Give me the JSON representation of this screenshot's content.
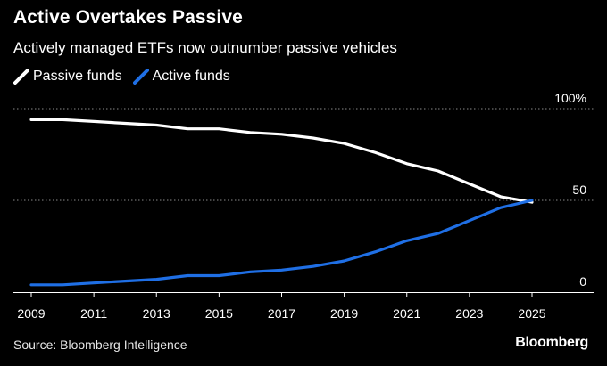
{
  "chart_data": {
    "type": "line",
    "title": "Active Overtakes Passive",
    "subtitle": "Actively managed ETFs now outnumber passive vehicles",
    "xlabel": "",
    "ylabel": "",
    "x": [
      2009,
      2010,
      2011,
      2012,
      2013,
      2014,
      2015,
      2016,
      2017,
      2018,
      2019,
      2020,
      2021,
      2022,
      2023,
      2024,
      2025
    ],
    "xlim": [
      2009,
      2025.8
    ],
    "xticks": [
      "2009",
      "2011",
      "2013",
      "2015",
      "2017",
      "2019",
      "2021",
      "2023",
      "2025"
    ],
    "ylim": [
      0,
      100
    ],
    "yticks": [
      "0",
      "50",
      "100%"
    ],
    "grid": "horizontal dotted",
    "legend_position": "top-left",
    "series": [
      {
        "name": "Passive funds",
        "color": "#ffffff",
        "values": [
          94,
          94,
          93,
          92,
          91,
          89,
          89,
          87,
          86,
          84,
          81,
          76,
          70,
          66,
          59,
          52,
          49
        ]
      },
      {
        "name": "Active funds",
        "color": "#1f6fe5",
        "values": [
          4,
          4,
          5,
          6,
          7,
          9,
          9,
          11,
          12,
          14,
          17,
          22,
          28,
          32,
          39,
          46,
          50
        ]
      }
    ]
  },
  "footer": {
    "source": "Source: Bloomberg Intelligence",
    "brand": "Bloomberg"
  }
}
